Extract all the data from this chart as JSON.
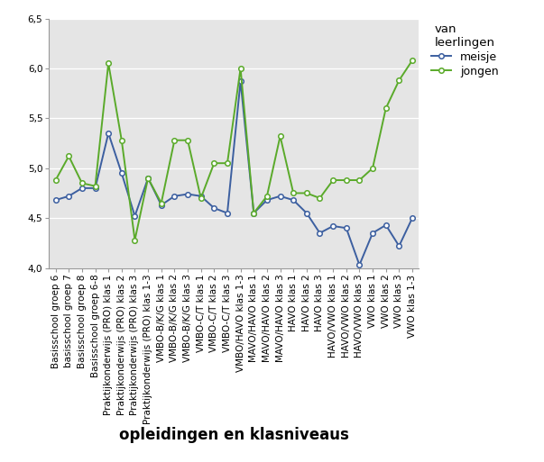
{
  "xlabel": "opleidingen en klasniveaus",
  "legend_title": "van\nleerlingen",
  "legend_meisje": "meisje",
  "legend_jongen": "jongen",
  "ylim": [
    4.0,
    6.5
  ],
  "yticks": [
    4.0,
    4.5,
    5.0,
    5.5,
    6.0,
    6.5
  ],
  "ytick_labels": [
    "4,0",
    "4,5",
    "5,0",
    "5,5",
    "6,0",
    "6,5"
  ],
  "categories": [
    "Basisschool groep 6",
    "basisschool groep 7",
    "Basisschool groep 8",
    "Basisschool groep 6-8",
    "Praktijkonderwijs (PRO) klas 1",
    "Praktijkonderwijs (PRO) klas 2",
    "Praktijkonderwijs (PRO) klas 3",
    "Praktijkonderwijs (PRO) klas 1-3",
    "VMBO-B/K/G klas 1",
    "VMBO-B/K/G klas 2",
    "VMBO-B/K/G klas 3",
    "VMBO-C/T klas 1",
    "VMBO-C/T klas 2",
    "VMBO-C/T klas 3",
    "VMBO/HAVO klas 1-3",
    "MAVO/HAVO klas 1",
    "MAVO/HAVO klas 2",
    "MAVO/HAVO klas 3",
    "HAVO klas 1",
    "HAVO klas 2",
    "HAVO klas 3",
    "HAVO/VWO klas 1",
    "HAVO/VWO klas 2",
    "HAVO/VWO klas 3",
    "VWO klas 1",
    "VWO klas 2",
    "VWO klas 3",
    "VWO klas 1-3"
  ],
  "meisje": [
    4.68,
    4.72,
    4.8,
    4.8,
    5.35,
    4.95,
    4.52,
    4.9,
    4.63,
    4.72,
    4.74,
    4.72,
    4.6,
    4.55,
    5.87,
    4.55,
    4.68,
    4.72,
    4.68,
    4.55,
    4.35,
    4.42,
    4.4,
    4.03,
    4.35,
    4.43,
    4.22,
    4.5
  ],
  "jongen": [
    4.88,
    5.12,
    4.85,
    4.82,
    6.05,
    5.28,
    4.28,
    4.9,
    4.65,
    5.28,
    5.28,
    4.7,
    5.05,
    5.05,
    6.0,
    4.55,
    4.72,
    5.32,
    4.75,
    4.75,
    4.7,
    4.88,
    4.88,
    4.88,
    5.0,
    5.6,
    5.88,
    6.08
  ],
  "meisje_color": "#3c5fa0",
  "jongen_color": "#5aaa2a",
  "bg_color": "#e5e5e5",
  "marker": "o",
  "markersize": 4,
  "linewidth": 1.4,
  "tick_fontsize": 7.5,
  "xlabel_fontsize": 12
}
